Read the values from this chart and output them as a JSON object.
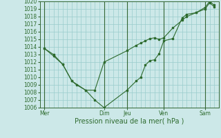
{
  "background_color": "#cce8e8",
  "grid_color": "#99cccc",
  "line_color": "#2d6a2d",
  "marker_color": "#2d6a2d",
  "xlabel": "Pression niveau de la mer( hPa )",
  "ylim": [
    1006,
    1020
  ],
  "yticks": [
    1006,
    1007,
    1008,
    1009,
    1010,
    1011,
    1012,
    1013,
    1014,
    1015,
    1016,
    1017,
    1018,
    1019,
    1020
  ],
  "day_labels": [
    "Mer",
    "Dim",
    "Jeu",
    "Ven",
    "Sam"
  ],
  "day_positions": [
    0.5,
    7.0,
    9.5,
    13.5,
    18.0
  ],
  "xlim": [
    0,
    19.5
  ],
  "vline_positions": [
    0.5,
    7.0,
    9.5,
    13.5,
    18.0
  ],
  "series1_x": [
    0.5,
    1.5,
    2.5,
    3.5,
    5.0,
    6.0,
    7.0,
    9.5,
    10.5,
    11.0,
    11.5,
    12.0,
    12.5,
    13.0,
    13.5,
    14.5,
    15.5,
    16.0,
    17.0,
    18.0,
    18.5,
    19.0
  ],
  "series1_y": [
    1013.8,
    1013.0,
    1011.7,
    1009.5,
    1008.3,
    1008.3,
    1012.0,
    1013.5,
    1014.2,
    1014.5,
    1014.8,
    1015.1,
    1015.2,
    1015.0,
    1015.2,
    1016.5,
    1017.5,
    1018.0,
    1018.5,
    1019.2,
    1020.0,
    1019.5
  ],
  "series2_x": [
    0.5,
    1.5,
    2.5,
    3.5,
    4.0,
    5.0,
    6.0,
    7.0,
    9.5,
    10.5,
    11.0,
    11.5,
    12.0,
    12.5,
    13.0,
    13.5,
    14.5,
    15.5,
    16.0,
    17.0,
    18.0,
    18.5,
    19.0
  ],
  "series2_y": [
    1013.8,
    1012.8,
    1011.7,
    1009.5,
    1009.0,
    1008.3,
    1007.0,
    1006.0,
    1008.3,
    1009.5,
    1010.0,
    1011.6,
    1012.2,
    1012.3,
    1013.1,
    1014.8,
    1015.1,
    1017.8,
    1018.3,
    1018.5,
    1019.0,
    1019.8,
    1019.3
  ],
  "vline_color": "#336633",
  "font_color": "#2d6a2d",
  "font_size": 5.5,
  "xlabel_fontsize": 7.0
}
